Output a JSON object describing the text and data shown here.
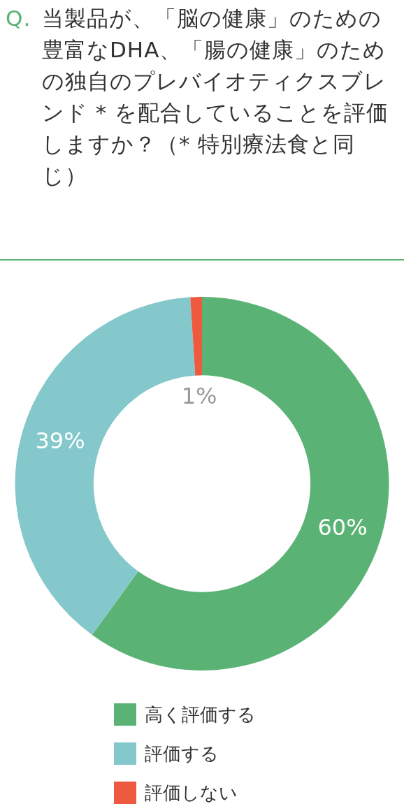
{
  "chart_data": {
    "type": "donut",
    "title": "Q. 当製品が、「脳の健康」のための豊富なDHA、「腸の健康」のための独自のプレバイオティクスブレンド * を配合していることを評価しますか？（* 特別療法食と同じ）",
    "categories": [
      "高く評価する",
      "評価する",
      "評価しない"
    ],
    "values": [
      60,
      39,
      1
    ],
    "colors": [
      "#5ab374",
      "#84c8cb",
      "#ee5a40"
    ],
    "value_labels": [
      "60%",
      "39%",
      "1%"
    ],
    "legend": "bottom"
  }
}
